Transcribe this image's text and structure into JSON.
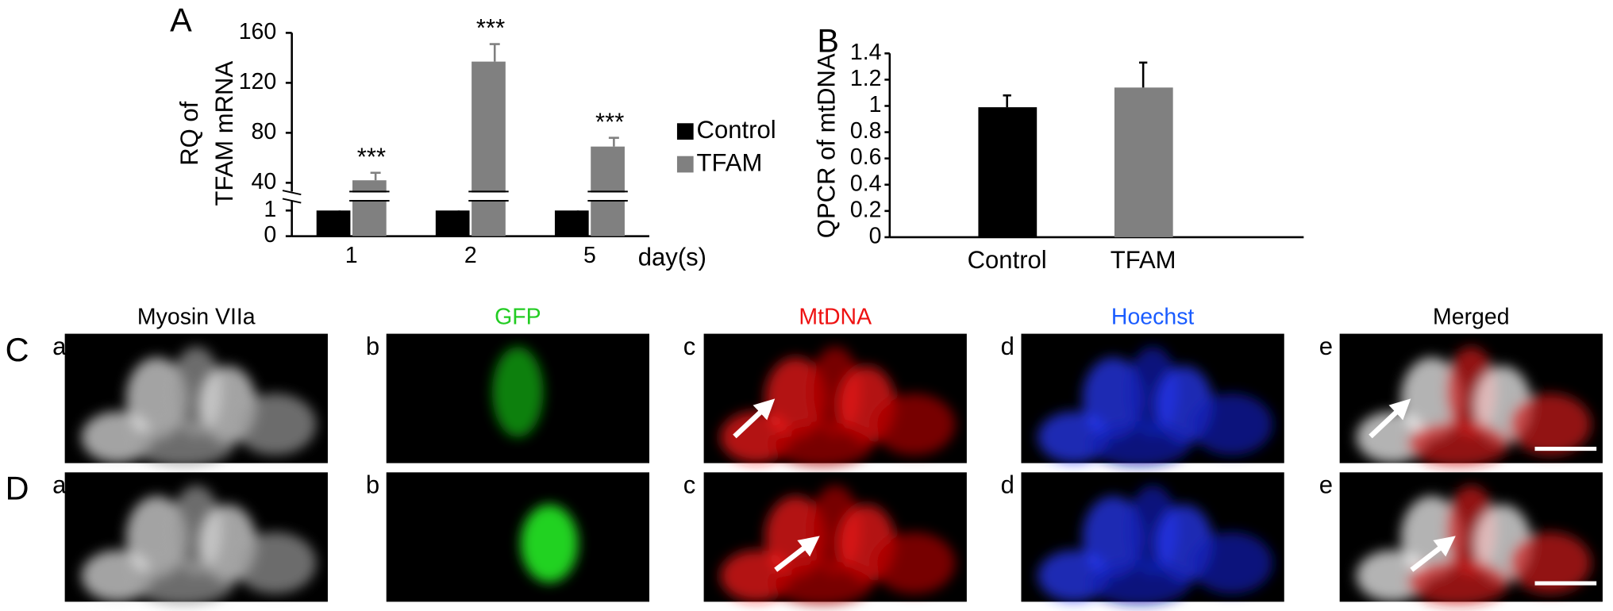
{
  "chart_data": [
    {
      "type": "bar",
      "title": "A",
      "ylabel": [
        "RQ of",
        "TFAM mRNA"
      ],
      "xlabel": "day(s)",
      "categories": [
        "1",
        "2",
        "5"
      ],
      "series": [
        {
          "name": "Control",
          "color": "#000000",
          "values": [
            1,
            1,
            1
          ],
          "errors": [
            0.15,
            0.15,
            0.15
          ]
        },
        {
          "name": "TFAM",
          "color": "#808080",
          "values": [
            42,
            137,
            69
          ],
          "errors": [
            6,
            14,
            7
          ]
        }
      ],
      "annotations": [
        "***",
        "***",
        "***"
      ],
      "ylim": [
        0,
        160
      ],
      "yticks": [
        0,
        1,
        40,
        80,
        120,
        160
      ],
      "axis_break": true,
      "legend": "right"
    },
    {
      "type": "bar",
      "title": "B",
      "ylabel": "QPCR of mtDNA",
      "categories": [
        "Control",
        "TFAM"
      ],
      "values": [
        0.99,
        1.14
      ],
      "errors": [
        0.09,
        0.19
      ],
      "colors": [
        "#000000",
        "#808080"
      ],
      "ylim": [
        0,
        1.4
      ],
      "yticks": [
        0,
        0.2,
        0.4,
        0.6,
        0.8,
        1,
        1.2,
        1.4
      ]
    }
  ],
  "figure": {
    "row_labels": [
      "C",
      "D"
    ],
    "column_letters": [
      "a",
      "b",
      "c",
      "d",
      "e"
    ],
    "headers": [
      "Myosin VIIa",
      "GFP",
      "MtDNA",
      "Hoechst",
      "Merged"
    ],
    "header_colors": [
      "#000000",
      "#22cc22",
      "#ee1111",
      "#1a5cff",
      "#000000"
    ]
  }
}
